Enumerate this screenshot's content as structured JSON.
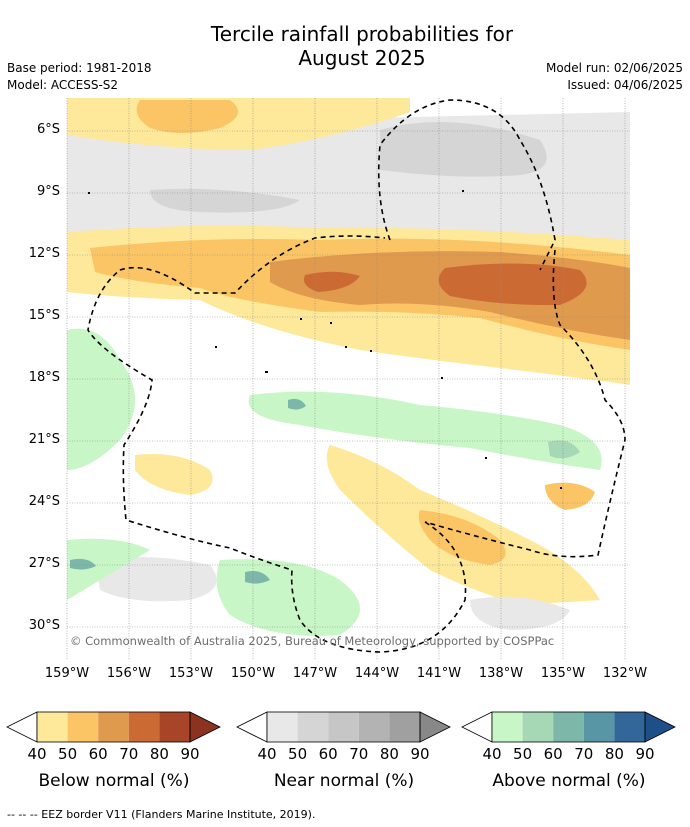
{
  "header": {
    "title_line1": "Tercile rainfall probabilities for",
    "title_line2": "August 2025",
    "base_period": "Base period: 1981-2018",
    "model": "Model: ACCESS-S2",
    "model_run": "Model run: 02/06/2025",
    "issued": "Issued: 04/06/2025"
  },
  "map": {
    "lat_labels": [
      "6°S",
      "9°S",
      "12°S",
      "15°S",
      "18°S",
      "21°S",
      "24°S",
      "27°S",
      "30°S"
    ],
    "lon_labels": [
      "159°W",
      "156°W",
      "153°W",
      "150°W",
      "147°W",
      "144°W",
      "141°W",
      "138°W",
      "135°W",
      "132°W"
    ],
    "copyright": "© Commonwealth of Australia 2025, Bureau of Meteorology, supported by COSPPac",
    "colors": {
      "below_40": "#fee99a",
      "below_50": "#fbc565",
      "below_60": "#e09a4d",
      "below_70": "#cc6a34",
      "below_80": "#a84427",
      "near_40": "#e8e8e8",
      "near_50": "#d5d5d5",
      "above_40": "#c8f6c6",
      "above_50": "#a7d8b6",
      "above_60": "#7cb7aa",
      "above_70": "#5896a6"
    }
  },
  "colorbars": [
    {
      "title": "Below normal (%)",
      "ticks": [
        "40",
        "50",
        "60",
        "70",
        "80",
        "90"
      ],
      "colors": [
        "#fee99a",
        "#fbc565",
        "#e09a4d",
        "#cc6a34",
        "#a84427",
        "#8c3220"
      ]
    },
    {
      "title": "Near normal (%)",
      "ticks": [
        "40",
        "50",
        "60",
        "70",
        "80",
        "90"
      ],
      "colors": [
        "#e8e8e8",
        "#d5d5d5",
        "#c6c6c6",
        "#b3b3b3",
        "#a0a0a0",
        "#888888"
      ]
    },
    {
      "title": "Above normal (%)",
      "ticks": [
        "40",
        "50",
        "60",
        "70",
        "80",
        "90"
      ],
      "colors": [
        "#c8f6c6",
        "#a7d8b6",
        "#7cb7aa",
        "#5896a6",
        "#33679a",
        "#1e4f88"
      ]
    }
  ],
  "footer": "--  --  -- EEZ border V11 (Flanders Marine Institute, 2019)."
}
